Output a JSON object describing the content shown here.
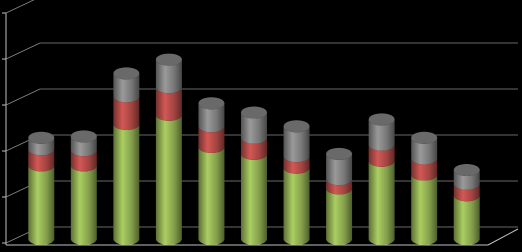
{
  "chart_data": {
    "type": "stacked-cylinder",
    "categories": [
      null,
      null,
      null,
      null,
      null,
      null,
      null,
      null,
      null,
      null,
      null
    ],
    "series": [
      {
        "color": "#9bbb59",
        "values": [
          1.6,
          1.6,
          2.5,
          2.7,
          2.0,
          1.85,
          1.55,
          1.1,
          1.7,
          1.4,
          0.95
        ]
      },
      {
        "color": "#c0504d",
        "values": [
          0.35,
          0.33,
          0.6,
          0.6,
          0.45,
          0.35,
          0.25,
          0.2,
          0.35,
          0.35,
          0.25
        ]
      },
      {
        "color": "#8c8c8c",
        "values": [
          0.25,
          0.3,
          0.5,
          0.6,
          0.5,
          0.55,
          0.65,
          0.55,
          0.55,
          0.45,
          0.3
        ]
      }
    ],
    "ylim": [
      0,
      5
    ],
    "yticks": [
      0,
      1,
      2,
      3,
      4,
      5
    ],
    "grid": true
  }
}
